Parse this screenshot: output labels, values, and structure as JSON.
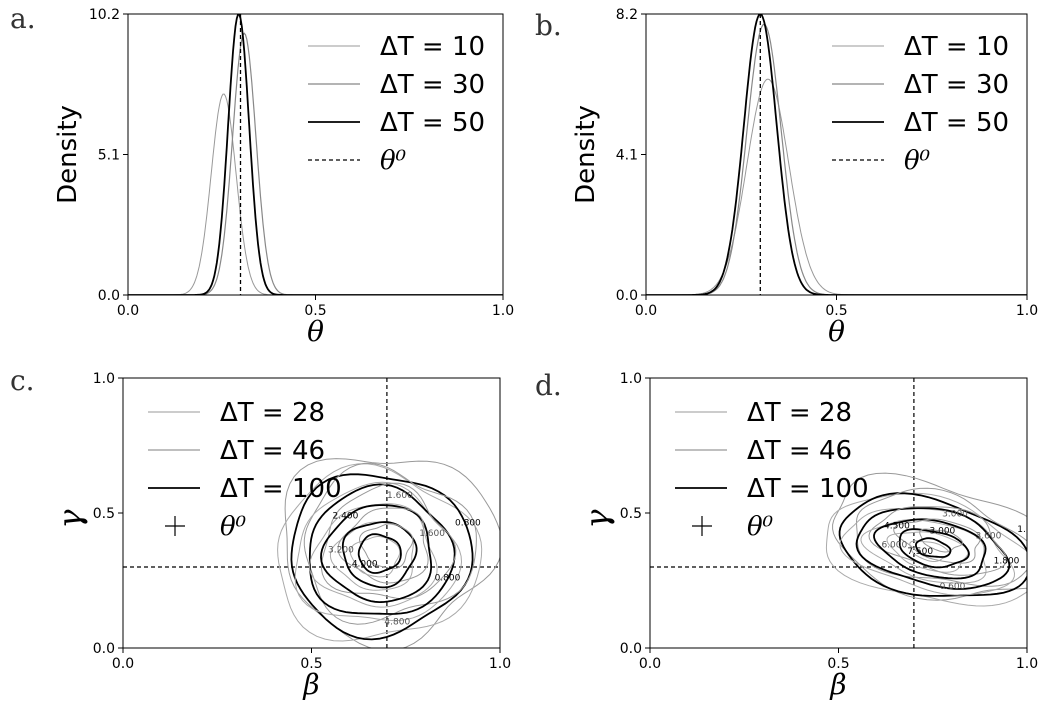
{
  "chart_data": [
    {
      "panel": "a.",
      "type": "line",
      "xlabel": "θ",
      "ylabel": "Density",
      "xlim": [
        0.0,
        1.0
      ],
      "ylim": [
        0.0,
        10.2
      ],
      "xticks": [
        "0.0",
        "0.5",
        "1.0"
      ],
      "yticks": [
        "0.0",
        "5.1",
        "10.2"
      ],
      "legend_position": "top-right",
      "series": [
        {
          "name": "ΔT = 10",
          "color": "#999999",
          "peak_x": 0.255,
          "peak_y": 7.3,
          "sd": 0.033
        },
        {
          "name": "ΔT = 30",
          "color": "#888888",
          "peak_x": 0.31,
          "peak_y": 9.5,
          "sd": 0.031
        },
        {
          "name": "ΔT = 50",
          "color": "#000000",
          "peak_x": 0.295,
          "peak_y": 10.2,
          "sd": 0.028
        }
      ],
      "reference": {
        "name": "θ⁰",
        "x": 0.3
      }
    },
    {
      "panel": "b.",
      "type": "line",
      "xlabel": "θ",
      "ylabel": "Density",
      "xlim": [
        0.0,
        1.0
      ],
      "ylim": [
        0.0,
        8.2
      ],
      "xticks": [
        "0.0",
        "0.5",
        "1.0"
      ],
      "yticks": [
        "0.0",
        "4.1",
        "8.2"
      ],
      "legend_position": "top-right",
      "series": [
        {
          "name": "ΔT = 10",
          "color": "#999999",
          "peak_x": 0.32,
          "peak_y": 6.3,
          "sd": 0.055
        },
        {
          "name": "ΔT = 30",
          "color": "#888888",
          "peak_x": 0.31,
          "peak_y": 7.9,
          "sd": 0.045
        },
        {
          "name": "ΔT = 50",
          "color": "#000000",
          "peak_x": 0.3,
          "peak_y": 8.2,
          "sd": 0.043
        }
      ],
      "reference": {
        "name": "θ⁰",
        "x": 0.3
      }
    },
    {
      "panel": "c.",
      "type": "contour",
      "xlabel": "β",
      "ylabel": "γ",
      "xlim": [
        0.0,
        1.0
      ],
      "ylim": [
        0.0,
        1.0
      ],
      "xticks": [
        "0.0",
        "0.5",
        "1.0"
      ],
      "yticks": [
        "0.0",
        "0.5",
        "1.0"
      ],
      "legend_position": "upper-left",
      "series": [
        {
          "name": "ΔT = 28",
          "color": "#999999"
        },
        {
          "name": "ΔT = 46",
          "color": "#999999"
        },
        {
          "name": "ΔT = 100",
          "color": "#000000"
        }
      ],
      "reference": {
        "name": "θ⁰",
        "x": 0.7,
        "y": 0.3
      },
      "contour_labels": [
        "0.800",
        "1.600",
        "2.400",
        "3.200",
        "4.000",
        "4.800",
        "0.800",
        "1.600"
      ]
    },
    {
      "panel": "d.",
      "type": "contour",
      "xlabel": "β",
      "ylabel": "γ",
      "xlim": [
        0.0,
        1.0
      ],
      "ylim": [
        0.0,
        1.0
      ],
      "xticks": [
        "0.0",
        "0.5",
        "1.0"
      ],
      "yticks": [
        "0.0",
        "0.5",
        "1.0"
      ],
      "legend_position": "upper-left",
      "series": [
        {
          "name": "ΔT = 28",
          "color": "#999999"
        },
        {
          "name": "ΔT = 46",
          "color": "#999999"
        },
        {
          "name": "ΔT = 100",
          "color": "#000000"
        }
      ],
      "reference": {
        "name": "θ⁰",
        "x": 0.7,
        "y": 0.3
      },
      "contour_labels": [
        "1.500",
        "3.000",
        "4.500",
        "6.000",
        "7.500",
        "0.600",
        "1.800",
        "3.600",
        "3.000"
      ]
    }
  ]
}
